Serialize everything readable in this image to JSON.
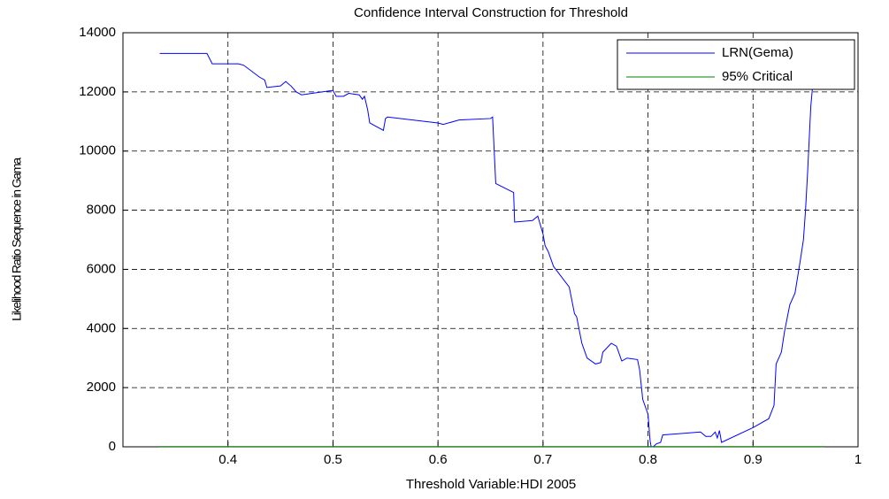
{
  "chart_data": {
    "type": "line",
    "title": "Confidence Interval Construction for Threshold",
    "xlabel": "Threshold Variable:HDI 2005",
    "ylabel": "Likelihood Ratio Sequence in Gama",
    "xlim": [
      0.3,
      1
    ],
    "xticks": [
      0.4,
      0.5,
      0.6,
      0.7,
      0.8,
      0.9,
      1
    ],
    "ylim": [
      0,
      14000
    ],
    "yticks": [
      0,
      2000,
      4000,
      6000,
      8000,
      10000,
      12000,
      14000
    ],
    "grid": true,
    "legend": "top-right",
    "series": [
      {
        "name": "LRN(Gema)",
        "color": "#0000ff",
        "x": [
          0.335,
          0.38,
          0.385,
          0.41,
          0.415,
          0.43,
          0.435,
          0.437,
          0.45,
          0.455,
          0.46,
          0.465,
          0.47,
          0.48,
          0.5,
          0.503,
          0.51,
          0.515,
          0.525,
          0.528,
          0.53,
          0.533,
          0.535,
          0.548,
          0.55,
          0.552,
          0.6,
          0.605,
          0.62,
          0.65,
          0.652,
          0.655,
          0.672,
          0.673,
          0.69,
          0.695,
          0.7,
          0.702,
          0.705,
          0.71,
          0.725,
          0.73,
          0.732,
          0.737,
          0.742,
          0.75,
          0.755,
          0.757,
          0.765,
          0.77,
          0.775,
          0.78,
          0.79,
          0.792,
          0.795,
          0.8,
          0.802,
          0.803,
          0.805,
          0.808,
          0.812,
          0.814,
          0.85,
          0.855,
          0.86,
          0.864,
          0.866,
          0.868,
          0.87,
          0.9,
          0.915,
          0.92,
          0.922,
          0.927,
          0.93,
          0.935,
          0.94,
          0.945,
          0.948,
          0.95,
          0.952,
          0.955,
          0.957
        ],
        "values": [
          13300,
          13300,
          12950,
          12950,
          12900,
          12500,
          12400,
          12150,
          12200,
          12350,
          12200,
          12000,
          11900,
          11950,
          12050,
          11850,
          11850,
          11950,
          11900,
          11750,
          11850,
          11400,
          10950,
          10700,
          11100,
          11150,
          10950,
          10900,
          11050,
          11100,
          11150,
          8900,
          8600,
          7600,
          7650,
          7800,
          7200,
          6800,
          6600,
          6100,
          5400,
          4500,
          4400,
          3500,
          3000,
          2800,
          2850,
          3200,
          3500,
          3400,
          2900,
          3000,
          2950,
          2600,
          1600,
          1100,
          200,
          0,
          0,
          100,
          150,
          400,
          500,
          350,
          350,
          500,
          300,
          550,
          150,
          650,
          950,
          1400,
          2800,
          3200,
          3900,
          4800,
          5200,
          6300,
          7000,
          8000,
          9300,
          11500,
          12300
        ]
      },
      {
        "name": "95% Critical",
        "color": "#008000",
        "x": [
          0.335,
          0.968
        ],
        "values": [
          7.35,
          7.35
        ]
      }
    ]
  }
}
